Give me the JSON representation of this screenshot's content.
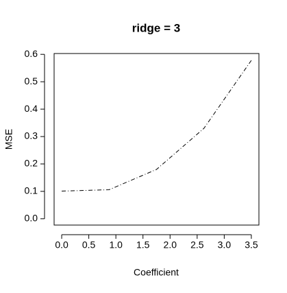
{
  "chart_data": {
    "type": "line",
    "title": "ridge = 3",
    "x_label": "Coefficient",
    "y_label": "MSE",
    "x": [
      0,
      0.875,
      1.75,
      2.625,
      3.5
    ],
    "series": [
      {
        "color": "#000000",
        "line_style": "dashdot",
        "values": [
          0.101,
          0.106,
          0.18,
          0.33,
          0.578
        ]
      }
    ],
    "xlim": [
      -0.14,
      3.64
    ],
    "ylim": [
      -0.023,
      0.603
    ],
    "xticks": [
      {
        "value": 0,
        "label": "0.0"
      },
      0.5,
      {
        "value": 1,
        "label": "1.0"
      },
      1.5,
      {
        "value": 2,
        "label": "2.0"
      },
      2.5,
      {
        "value": 3,
        "label": "3.0"
      },
      3.5
    ],
    "yticks": [
      {
        "value": 0,
        "label": "0.0"
      },
      0.1,
      0.2,
      0.3,
      0.4,
      0.5,
      0.6
    ]
  }
}
